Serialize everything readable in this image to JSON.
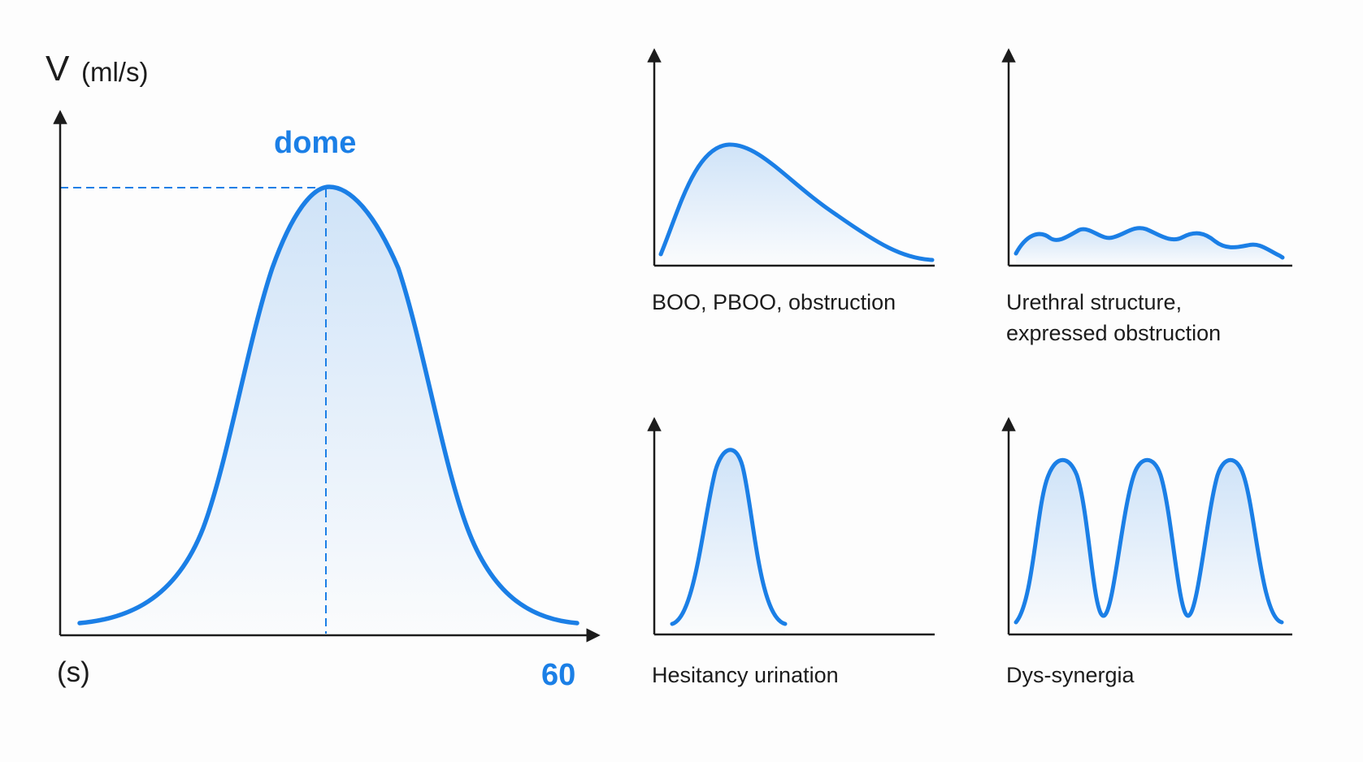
{
  "main_chart": {
    "y_label": "V",
    "y_unit": "(ml/s)",
    "x_unit": "(s)",
    "x_max_label": "60",
    "peak_label": "dome"
  },
  "panels": [
    {
      "caption": "BOO, PBOO, obstruction",
      "shape": "skewed-peak"
    },
    {
      "caption_lines": [
        "Urethral structure,",
        "expressed obstruction"
      ],
      "shape": "low-plateau"
    },
    {
      "caption": "Hesitancy urination",
      "shape": "narrow-peak"
    },
    {
      "caption": "Dys-synergia",
      "shape": "three-peaks"
    }
  ],
  "colors": {
    "curve": "#1b7fe6",
    "fill_top": "#cfe3f8",
    "axis": "#1c1c1c",
    "accent_text": "#1b7fe6"
  }
}
